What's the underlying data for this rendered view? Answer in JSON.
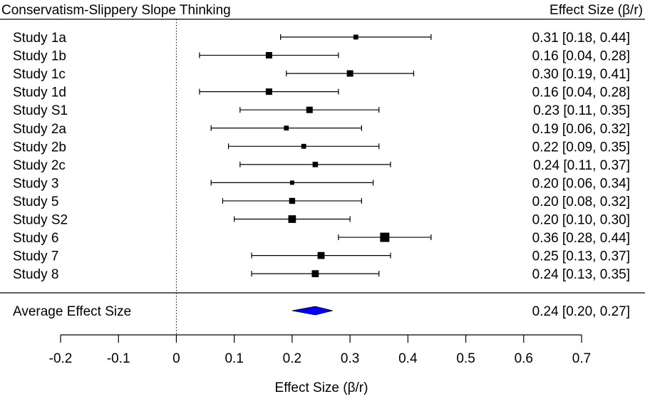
{
  "chart_data": {
    "type": "forest",
    "title": "Conservatism-Slippery Slope Thinking",
    "right_header": "Effect Size (β/r)",
    "xlabel": "Effect Size (β/r)",
    "xlim": [
      -0.2,
      0.7
    ],
    "xticks": [
      -0.2,
      -0.1,
      0,
      0.1,
      0.2,
      0.3,
      0.4,
      0.5,
      0.6,
      0.7
    ],
    "xtick_labels": [
      "-0.2",
      "-0.1",
      "0",
      "0.1",
      "0.2",
      "0.3",
      "0.4",
      "0.5",
      "0.6",
      "0.7"
    ],
    "reference_line": 0,
    "studies": [
      {
        "label": "Study 1a",
        "est": 0.31,
        "lo": 0.18,
        "hi": 0.44,
        "text": "0.31 [0.18, 0.44]",
        "weight": 0.38
      },
      {
        "label": "Study 1b",
        "est": 0.16,
        "lo": 0.04,
        "hi": 0.28,
        "text": "0.16 [0.04, 0.28]",
        "weight": 0.6
      },
      {
        "label": "Study 1c",
        "est": 0.3,
        "lo": 0.19,
        "hi": 0.41,
        "text": "0.30 [0.19, 0.41]",
        "weight": 0.6
      },
      {
        "label": "Study 1d",
        "est": 0.16,
        "lo": 0.04,
        "hi": 0.28,
        "text": "0.16 [0.04, 0.28]",
        "weight": 0.6
      },
      {
        "label": "Study S1",
        "est": 0.23,
        "lo": 0.11,
        "hi": 0.35,
        "text": "0.23 [0.11, 0.35]",
        "weight": 0.6
      },
      {
        "label": "Study 2a",
        "est": 0.19,
        "lo": 0.06,
        "hi": 0.32,
        "text": "0.19 [0.06, 0.32]",
        "weight": 0.38
      },
      {
        "label": "Study 2b",
        "est": 0.22,
        "lo": 0.09,
        "hi": 0.35,
        "text": "0.22 [0.09, 0.35]",
        "weight": 0.38
      },
      {
        "label": "Study 2c",
        "est": 0.24,
        "lo": 0.11,
        "hi": 0.37,
        "text": "0.24 [0.11, 0.37]",
        "weight": 0.46
      },
      {
        "label": "Study 3",
        "est": 0.2,
        "lo": 0.06,
        "hi": 0.34,
        "text": "0.20 [0.06, 0.34]",
        "weight": 0.3
      },
      {
        "label": "Study 5",
        "est": 0.2,
        "lo": 0.08,
        "hi": 0.32,
        "text": "0.20 [0.08, 0.32]",
        "weight": 0.54
      },
      {
        "label": "Study S2",
        "est": 0.2,
        "lo": 0.1,
        "hi": 0.3,
        "text": "0.20 [0.10, 0.30]",
        "weight": 0.77
      },
      {
        "label": "Study 6",
        "est": 0.36,
        "lo": 0.28,
        "hi": 0.44,
        "text": "0.36 [0.28, 0.44]",
        "weight": 1.0
      },
      {
        "label": "Study 7",
        "est": 0.25,
        "lo": 0.13,
        "hi": 0.37,
        "text": "0.25 [0.13, 0.37]",
        "weight": 0.68
      },
      {
        "label": "Study 8",
        "est": 0.24,
        "lo": 0.13,
        "hi": 0.35,
        "text": "0.24 [0.13, 0.35]",
        "weight": 0.68
      }
    ],
    "summary": {
      "label": "Average Effect Size",
      "est": 0.24,
      "lo": 0.2,
      "hi": 0.27,
      "text": "0.24 [0.20, 0.27]",
      "color": "#0000ff"
    }
  }
}
